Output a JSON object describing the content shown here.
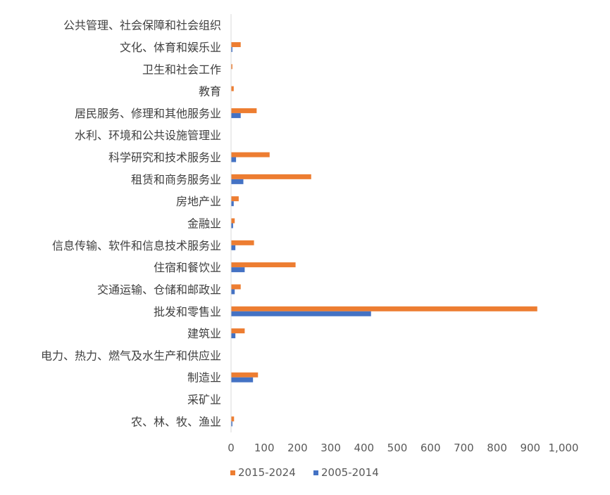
{
  "chart_data": {
    "type": "bar",
    "orientation": "horizontal",
    "categories": [
      "农、林、牧、渔业",
      "采矿业",
      "制造业",
      "电力、热力、燃气及水生产和供应业",
      "建筑业",
      "批发和零售业",
      "交通运输、仓储和邮政业",
      "住宿和餐饮业",
      "信息传输、软件和信息技术服务业",
      "金融业",
      "房地产业",
      "租赁和商务服务业",
      "科学研究和技术服务业",
      "水利、环境和公共设施管理业",
      "居民服务、修理和其他服务业",
      "教育",
      "卫生和社会工作",
      "文化、体育和娱乐业",
      "公共管理、社会保障和社会组织"
    ],
    "series": [
      {
        "name": "2015-2024",
        "color": "#ED7D31",
        "values": [
          8,
          0,
          80,
          0,
          40,
          920,
          28,
          193,
          68,
          10,
          22,
          240,
          115,
          0,
          76,
          7,
          3,
          28,
          0
        ]
      },
      {
        "name": "2005-2014",
        "color": "#4472C4",
        "values": [
          3,
          0,
          65,
          0,
          12,
          420,
          10,
          40,
          12,
          5,
          7,
          36,
          14,
          0,
          28,
          0,
          0,
          3,
          0
        ]
      }
    ],
    "xlim": [
      0,
      1000
    ],
    "xticks": [
      "0",
      "100",
      "200",
      "300",
      "400",
      "500",
      "600",
      "700",
      "800",
      "900",
      "1,000"
    ],
    "title": "",
    "xlabel": "",
    "ylabel": "",
    "grid": false,
    "legend_position": "bottom",
    "legend": [
      "2015-2024",
      "2005-2014"
    ],
    "axis_color": "#D9D9D9"
  }
}
